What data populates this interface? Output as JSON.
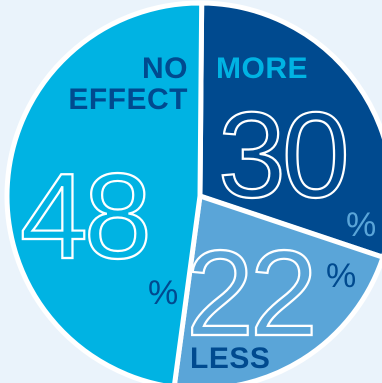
{
  "chart_data": {
    "type": "pie",
    "title": "",
    "slices": [
      {
        "label": "MORE",
        "value": 30,
        "value_label": "30",
        "unit": "%",
        "color": "#004a8f"
      },
      {
        "label": "LESS",
        "value": 22,
        "value_label": "22",
        "unit": "%",
        "color": "#5aa5d8"
      },
      {
        "label": "NO EFFECT",
        "value": 48,
        "value_label": "48",
        "unit": "%",
        "color": "#00b3e3"
      }
    ],
    "label_colors": {
      "MORE": "#00b3e3",
      "LESS": "#004a8f",
      "NO EFFECT": "#004a8f"
    },
    "background": "#eaf3fb",
    "separator_color": "#ffffff"
  }
}
